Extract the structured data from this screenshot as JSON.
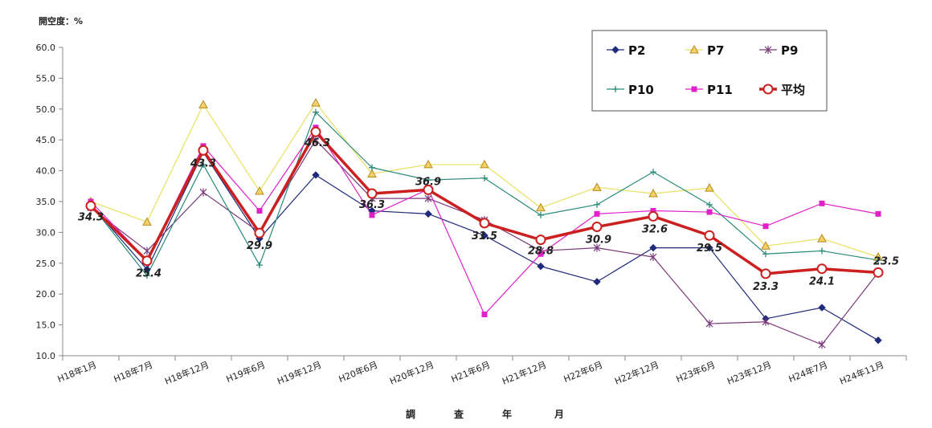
{
  "chart_data": {
    "type": "line",
    "ylabel": "開空度：%",
    "xlabel": "調 査 年 月",
    "ylim": [
      10,
      60
    ],
    "ytick_step": 5,
    "grid": false,
    "legend_position": "top-right",
    "categories": [
      "H18年1月",
      "H18年7月",
      "H18年12月",
      "H19年6月",
      "H19年12月",
      "H20年6月",
      "H20年12月",
      "H21年6月",
      "H21年12月",
      "H22年6月",
      "H22年12月",
      "H23年6月",
      "H23年12月",
      "H24年7月",
      "H24年11月"
    ],
    "series": [
      {
        "name": "P2",
        "color": "#1f2a7a",
        "marker": "diamond",
        "values": [
          34.5,
          24.0,
          43.0,
          29.0,
          39.3,
          33.5,
          33.0,
          29.5,
          24.5,
          22.0,
          27.5,
          27.5,
          16.0,
          17.8,
          12.5
        ]
      },
      {
        "name": "P7",
        "color": "#e8e060",
        "marker": "triangle",
        "values": [
          35.0,
          31.7,
          50.7,
          36.7,
          51.0,
          39.5,
          41.0,
          41.0,
          34.0,
          37.3,
          36.3,
          37.2,
          27.8,
          29.0,
          26.0
        ]
      },
      {
        "name": "P9",
        "color": "#7a3a7a",
        "marker": "star",
        "values": [
          34.0,
          27.0,
          36.5,
          30.0,
          45.0,
          35.5,
          35.5,
          32.0,
          27.0,
          27.5,
          26.0,
          15.2,
          15.5,
          11.8,
          23.5
        ]
      },
      {
        "name": "P10",
        "color": "#2a8a7a",
        "marker": "plus",
        "values": [
          34.5,
          23.0,
          41.0,
          24.7,
          49.5,
          40.5,
          38.5,
          38.8,
          32.8,
          34.5,
          39.8,
          34.5,
          26.5,
          27.0,
          25.5
        ]
      },
      {
        "name": "P11",
        "color": "#e020c8",
        "marker": "square",
        "values": [
          35.0,
          25.5,
          44.0,
          33.5,
          47.0,
          32.8,
          37.0,
          16.7,
          26.5,
          33.0,
          33.5,
          33.3,
          31.0,
          34.7,
          33.0
        ]
      },
      {
        "name": "平均",
        "color": "#cc1f1f",
        "marker": "circle",
        "values": [
          34.3,
          25.4,
          43.3,
          29.9,
          46.3,
          36.3,
          36.9,
          31.5,
          28.8,
          30.9,
          32.6,
          29.5,
          23.3,
          24.1,
          23.5
        ]
      }
    ],
    "data_labels": [
      "34.3",
      "25.4",
      "43.3",
      "29.9",
      "46.3",
      "36.3",
      "36.9",
      "31.5",
      "28.8",
      "30.9",
      "32.6",
      "29.5",
      "23.3",
      "24.1",
      "23.5"
    ]
  }
}
